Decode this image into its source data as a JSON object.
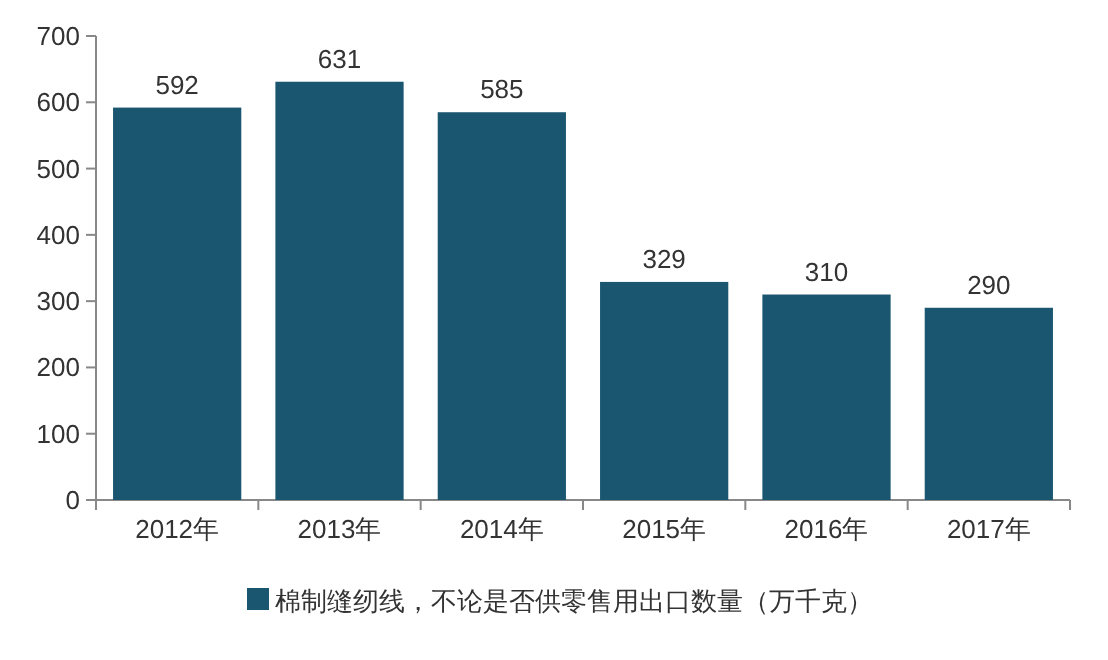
{
  "chart_data": {
    "type": "bar",
    "categories": [
      "2012年",
      "2013年",
      "2014年",
      "2015年",
      "2016年",
      "2017年"
    ],
    "series": [
      {
        "name": "棉制缝纫线，不论是否供零售用出口数量（万千克）",
        "color": "#1b5670",
        "values": [
          592,
          631,
          585,
          329,
          310,
          290
        ]
      }
    ],
    "ylim": [
      0,
      700
    ],
    "yticks": [
      0,
      100,
      200,
      300,
      400,
      500,
      600,
      700
    ],
    "data_labels": true,
    "legend": "bottom"
  }
}
